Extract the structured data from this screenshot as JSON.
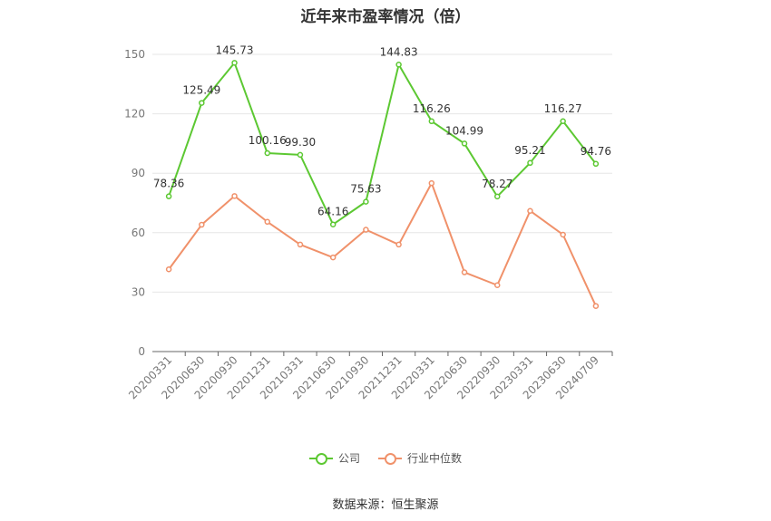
{
  "title": "近年来市盈率情况（倍）",
  "source": "数据来源：恒生聚源",
  "chart_data": {
    "type": "line",
    "title": "近年来市盈率情况（倍）",
    "categories": [
      "20200331",
      "20200630",
      "20200930",
      "20201231",
      "20210331",
      "20210630",
      "20210930",
      "20211231",
      "20220331",
      "20220630",
      "20220930",
      "20230331",
      "20230630",
      "20240709"
    ],
    "ylim": [
      0,
      150
    ],
    "yticks": [
      0,
      30,
      60,
      90,
      120,
      150
    ],
    "grid": true,
    "legend_position": "bottom",
    "series": [
      {
        "name": "公司",
        "color": "#5cc832",
        "labels": true,
        "values": [
          78.36,
          125.49,
          145.73,
          100.16,
          99.3,
          64.16,
          75.63,
          144.83,
          116.26,
          104.99,
          78.27,
          95.21,
          116.27,
          94.76
        ],
        "label_text": [
          "78.36",
          "125.49",
          "145.73",
          "100.16",
          "99.30",
          "64.16",
          "75.63",
          "144.83",
          "116.26",
          "104.99",
          "78.27",
          "95.21",
          "116.27",
          "94.76"
        ]
      },
      {
        "name": "行业中位数",
        "color": "#f0916a",
        "labels": false,
        "values": [
          41.5,
          64.0,
          78.5,
          65.5,
          54.0,
          47.5,
          61.5,
          54.0,
          85.0,
          40.0,
          33.5,
          71.0,
          59.0,
          23.0
        ]
      }
    ]
  }
}
